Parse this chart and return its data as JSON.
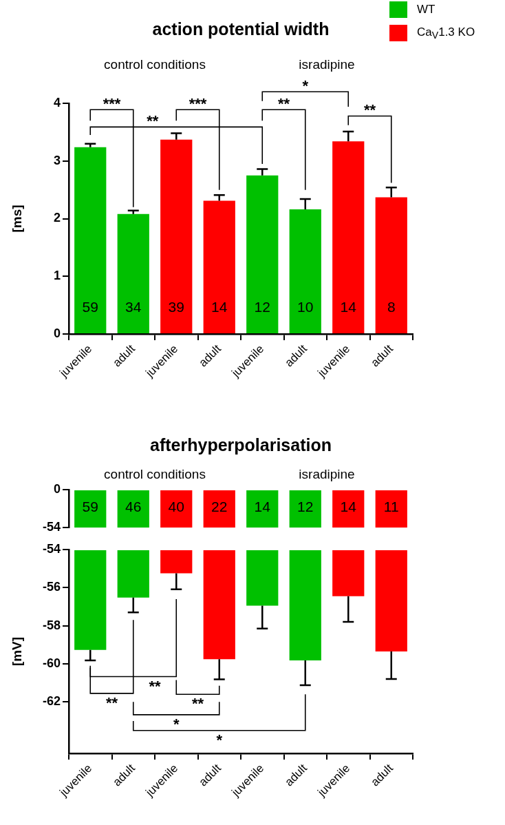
{
  "chart_data": [
    {
      "type": "bar",
      "title": "action potential width",
      "ylabel": "[ms]",
      "legend": "top right",
      "categories": [
        "juvenile",
        "adult",
        "juvenile",
        "adult",
        "juvenile",
        "adult",
        "juvenile",
        "adult"
      ],
      "series": [
        {
          "name": "WT",
          "color": "#00c000",
          "values": [
            3.24,
            2.08,
            null,
            null,
            2.75,
            2.16,
            null,
            null
          ],
          "errors": [
            [
              3.24,
              3.3
            ],
            [
              2.08,
              2.14
            ],
            null,
            null,
            [
              2.75,
              2.86
            ],
            [
              2.16,
              2.34
            ],
            null,
            null
          ]
        },
        {
          "name": "Ca$_{V}$1.3 KO",
          "color": "#ff0000",
          "values": [
            null,
            null,
            3.37,
            2.31,
            null,
            null,
            3.34,
            2.37
          ],
          "errors": [
            null,
            null,
            [
              3.37,
              3.48
            ],
            [
              2.31,
              2.41
            ],
            null,
            null,
            [
              3.34,
              3.51
            ],
            [
              2.37,
              2.54
            ]
          ]
        }
      ],
      "ylim": [
        0,
        4
      ],
      "yticks": [
        0,
        1,
        2,
        3,
        4
      ],
      "annotations": [
        "control conditions",
        "isradipine",
        "***",
        "***",
        "**",
        "*",
        "**",
        "**",
        "59",
        "34",
        "39",
        "14",
        "12",
        "10",
        "14",
        "8"
      ]
    },
    {
      "type": "bar",
      "title": "afterhyperpolarisation",
      "tick_labels": "y",
      "categories": [
        null,
        null,
        null,
        null,
        null,
        null,
        null,
        null
      ],
      "series": [
        {
          "color": "#00c000",
          "values": [
            -54,
            -54,
            null,
            null,
            -54,
            -54,
            null,
            null
          ]
        },
        {
          "color": "#ff0000",
          "values": [
            null,
            null,
            -54,
            -54,
            null,
            null,
            -54,
            -54
          ]
        }
      ],
      "ylim": [
        -54,
        0
      ],
      "yticks": [
        0,
        -54
      ],
      "annotations": [
        "control conditions",
        "isradipine",
        "59",
        "46",
        "40",
        "22",
        "14",
        "12",
        "14",
        "11"
      ]
    },
    {
      "type": "bar",
      "ylabel": "[mV]",
      "categories": [
        "juvenile",
        "adult",
        "juvenile",
        "adult",
        "juvenile",
        "adult",
        "juvenile",
        "adult"
      ],
      "series": [
        {
          "color": "#00c000",
          "values": [
            -59.27,
            -56.52,
            null,
            null,
            -56.95,
            -59.82,
            null,
            null
          ],
          "errors": [
            [
              -59.82,
              -59.27
            ],
            [
              -57.3,
              -56.52
            ],
            null,
            null,
            [
              -58.15,
              -56.95
            ],
            [
              -61.12,
              -59.82
            ],
            null,
            null
          ]
        },
        {
          "color": "#ff0000",
          "values": [
            null,
            null,
            -55.25,
            -59.76,
            null,
            null,
            -56.45,
            -59.35
          ],
          "errors": [
            null,
            null,
            [
              -56.09,
              -55.25
            ],
            [
              -60.81,
              -59.76
            ],
            null,
            null,
            [
              -57.8,
              -56.45
            ],
            [
              -60.8,
              -59.35
            ]
          ]
        }
      ],
      "ylim": [
        -64.7,
        -54
      ],
      "yticks": [
        -54,
        -56,
        -58,
        -60,
        -62
      ],
      "annotations": [
        "**",
        "**",
        "**",
        "*",
        "*"
      ]
    }
  ]
}
